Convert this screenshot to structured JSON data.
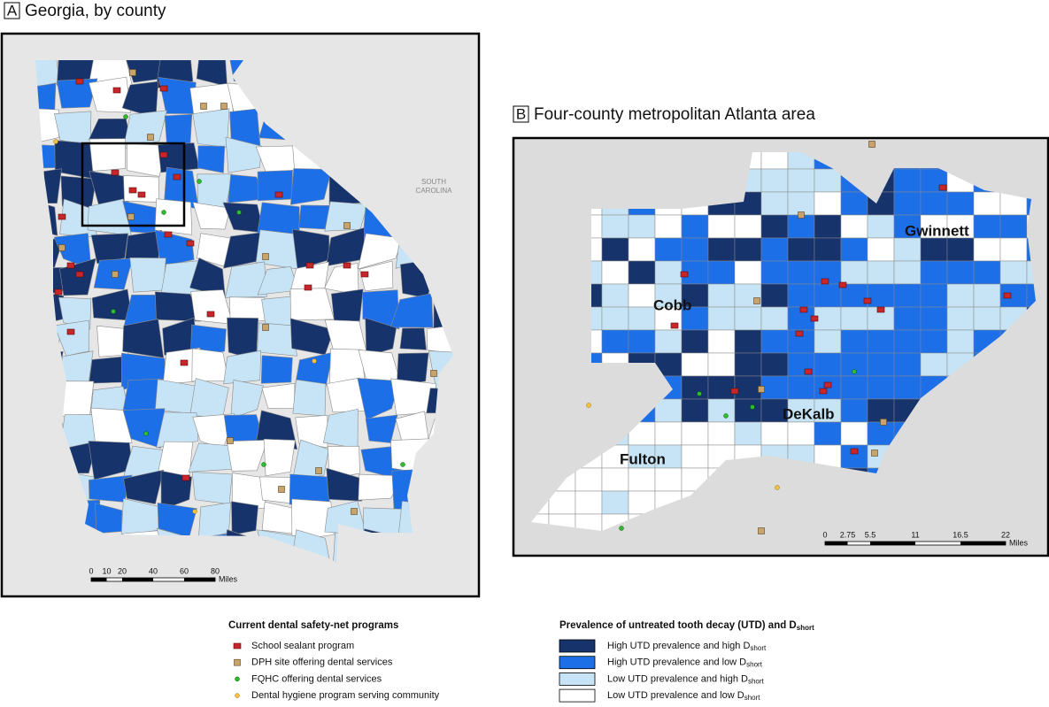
{
  "panel_a": {
    "letter": "A",
    "title": "Georgia, by county",
    "state_label": [
      "SOUTH",
      "CAROLINA"
    ],
    "scale": {
      "labels": [
        "0",
        "10",
        "20",
        "40",
        "60",
        "80"
      ],
      "unit": "Miles"
    }
  },
  "panel_b": {
    "letter": "B",
    "title": "Four-county metropolitan Atlanta area",
    "counties": [
      "Cobb",
      "Gwinnett",
      "DeKalb",
      "Fulton"
    ],
    "scale": {
      "labels": [
        "0",
        "2.75",
        "5.5",
        "11",
        "16.5",
        "22"
      ],
      "unit": "Miles"
    }
  },
  "legend_programs": {
    "title": "Current dental safety-net programs",
    "items": [
      "School sealant program",
      "DPH site offering dental services",
      "FQHC offering dental services",
      "Dental hygiene program serving community"
    ]
  },
  "legend_prevalence": {
    "title": "Prevalence of untreated tooth decay (UTD) and D",
    "title_sub": "short",
    "items": [
      {
        "label": "High UTD prevalence and high D",
        "sub": "short",
        "color": "#17336b"
      },
      {
        "label": "High UTD prevalence and low D",
        "sub": "short",
        "color": "#1d6fe8"
      },
      {
        "label": "Low UTD prevalence and high D",
        "sub": "short",
        "color": "#c6e4f6"
      },
      {
        "label": "Low UTD prevalence and low D",
        "sub": "short",
        "color": "#ffffff"
      }
    ]
  }
}
